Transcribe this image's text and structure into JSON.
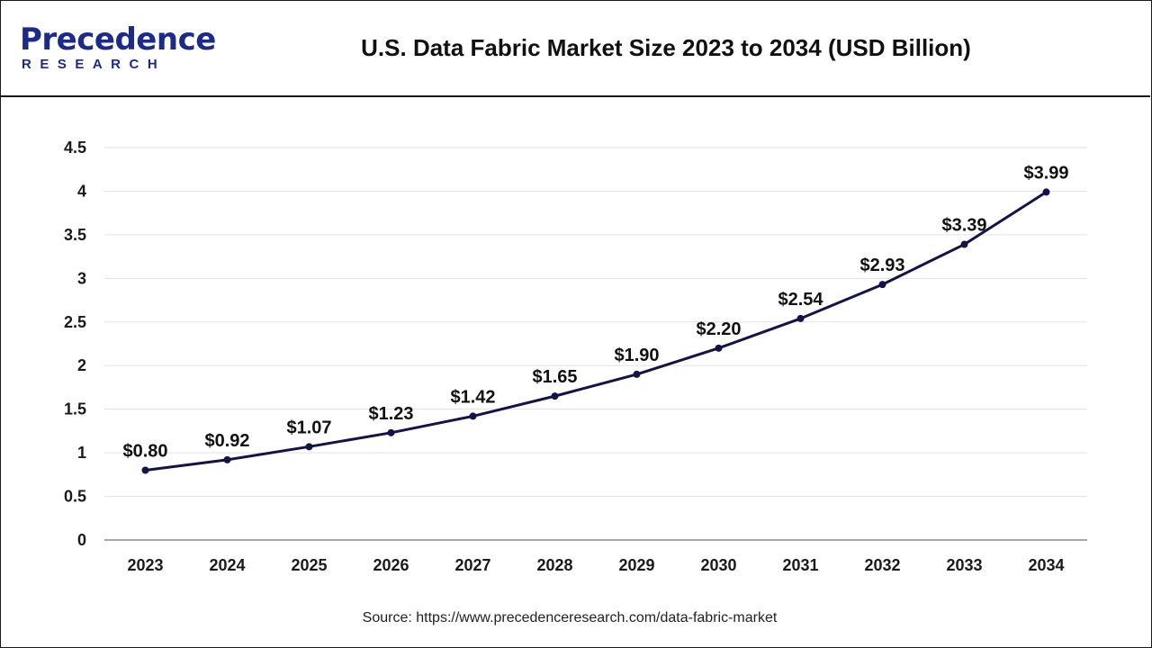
{
  "header": {
    "logo_main": "Precedence",
    "logo_sub": "RESEARCH",
    "title": "U.S. Data Fabric Market Size 2023 to 2034 (USD Billion)"
  },
  "source": "Source: https://www.precedenceresearch.com/data-fabric-market",
  "colors": {
    "line": "#12134a",
    "marker": "#12134a",
    "grid": "#e2e2e2",
    "axis": "#888888",
    "brand": "#1b2a8c"
  },
  "chart_data": {
    "type": "line",
    "title": "U.S. Data Fabric Market Size 2023 to 2034 (USD Billion)",
    "xlabel": "",
    "ylabel": "",
    "categories": [
      "2023",
      "2024",
      "2025",
      "2026",
      "2027",
      "2028",
      "2029",
      "2030",
      "2031",
      "2032",
      "2033",
      "2034"
    ],
    "values": [
      0.8,
      0.92,
      1.07,
      1.23,
      1.42,
      1.65,
      1.9,
      2.2,
      2.54,
      2.93,
      3.39,
      3.99
    ],
    "data_labels": [
      "$0.80",
      "$0.92",
      "$1.07",
      "$1.23",
      "$1.42",
      "$1.65",
      "$1.90",
      "$2.20",
      "$2.54",
      "$2.93",
      "$3.39",
      "$3.99"
    ],
    "yticks": [
      0,
      0.5,
      1,
      1.5,
      2,
      2.5,
      3,
      3.5,
      4,
      4.5
    ],
    "ytick_labels": [
      "0",
      "0.5",
      "1",
      "1.5",
      "2",
      "2.5",
      "3",
      "3.5",
      "4",
      "4.5"
    ],
    "ylim": [
      0,
      4.5
    ],
    "grid": true,
    "legend": "none"
  }
}
